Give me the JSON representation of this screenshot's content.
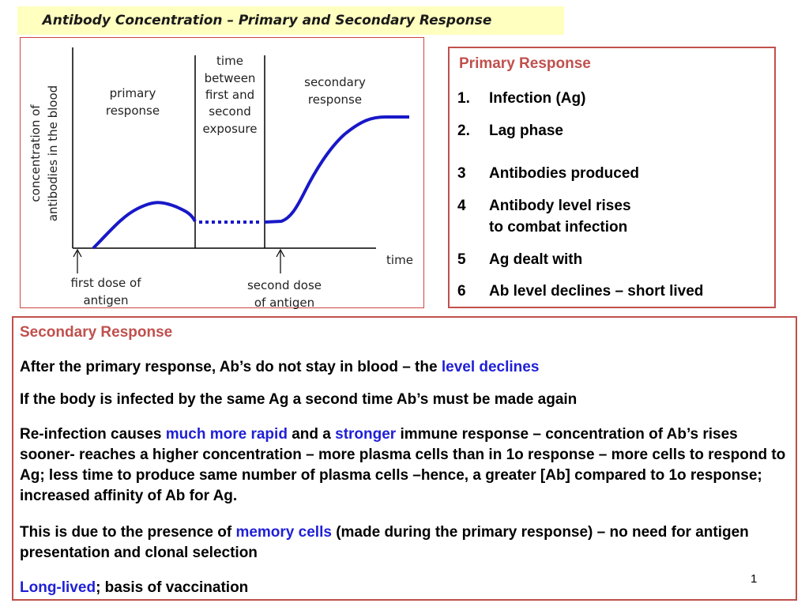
{
  "title": "Antibody Concentration – Primary and Secondary Response",
  "diagram": {
    "y_axis_label_1": "concentration of",
    "y_axis_label_2": "antibodies in the blood",
    "x_axis_label": "time",
    "primary_label_1": "primary",
    "primary_label_2": "response",
    "between_label_1": "time",
    "between_label_2": "between",
    "between_label_3": "first and",
    "between_label_4": "second",
    "between_label_5": "exposure",
    "secondary_label_1": "secondary",
    "secondary_label_2": "response",
    "first_dose_1": "first dose of",
    "first_dose_2": "antigen",
    "second_dose_1": "second dose",
    "second_dose_2": "of antigen",
    "curve_color": "#1818c8"
  },
  "primary": {
    "heading": "Primary Response",
    "steps": [
      {
        "num": "1.",
        "text": "Infection (Ag)"
      },
      {
        "num": "2.",
        "text": "Lag phase"
      },
      {
        "num": "3",
        "text": "Antibodies produced"
      },
      {
        "num": "4",
        "text": "Antibody level rises",
        "text2": "to combat infection"
      },
      {
        "num": "5",
        "text": "Ag dealt with"
      },
      {
        "num": "6",
        "text": "Ab level declines – short lived"
      }
    ]
  },
  "secondary": {
    "heading": "Secondary Response",
    "p1_a": "After the primary response, Ab’s do not stay in blood – the ",
    "p1_b": "level declines",
    "p2": "If the body is infected by the same Ag a second time Ab’s must be made again",
    "p3_a": "Re-infection causes ",
    "p3_b": "much more rapid",
    "p3_c": " and a ",
    "p3_d": "stronger",
    "p3_e": " immune response – concentration of Ab’s rises sooner-  reaches a  higher concentration – more plasma cells than in 1o response – more cells to respond to Ag; less time to produce same number of plasma cells –hence, a  greater  [Ab] compared to 1o response; increased affinity of Ab for Ag.",
    "p4_a": "This is due to the presence of ",
    "p4_b": "memory cells",
    "p4_c": " (made during the primary response) – no need for antigen presentation and clonal selection",
    "p5_a": "Long-lived",
    "p5_b": "; basis of vaccination"
  },
  "page_number": "1",
  "colors": {
    "heading_red": "#c0504d",
    "emphasis_blue": "#1f1fd6",
    "title_bg": "#ffffc0"
  }
}
